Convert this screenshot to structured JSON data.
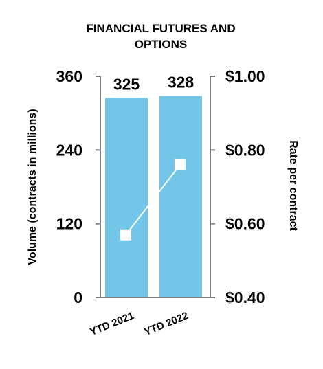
{
  "chart_data": {
    "type": "bar",
    "title_lines": [
      "FINANCIAL FUTURES AND",
      "OPTIONS"
    ],
    "categories": [
      "YTD 2021",
      "YTD 2022"
    ],
    "series": [
      {
        "type": "bar",
        "axis": "left",
        "values": [
          325,
          328
        ],
        "data_labels": [
          "325",
          "328"
        ]
      },
      {
        "type": "line",
        "axis": "right",
        "values": [
          0.57,
          0.76
        ]
      }
    ],
    "left_axis": {
      "title": "Volume (contracts in millions)",
      "ylim": [
        0,
        360
      ],
      "ticks": [
        0,
        120,
        240,
        360
      ],
      "tick_labels": [
        "0",
        "120",
        "240",
        "360"
      ]
    },
    "right_axis": {
      "title": "Rate per contract",
      "ylim": [
        0.4,
        1.0
      ],
      "ticks": [
        0.4,
        0.6,
        0.8,
        1.0
      ],
      "tick_labels": [
        "$0.40",
        "$0.60",
        "$0.80",
        "$1.00"
      ]
    },
    "grid": false,
    "legend": "none",
    "colors": {
      "bar": "#74c6e8",
      "line": "#ffffff",
      "axis": "#7f7f7f"
    }
  }
}
